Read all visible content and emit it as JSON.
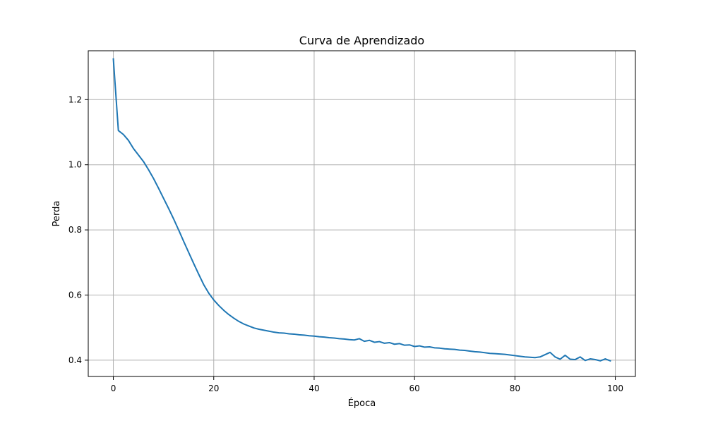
{
  "chart_data": {
    "type": "line",
    "title": "Curva de Aprendizado",
    "xlabel": "Época",
    "ylabel": "Perda",
    "xlim": [
      -5,
      104
    ],
    "ylim": [
      0.35,
      1.35
    ],
    "xticks": [
      "0",
      "20",
      "40",
      "60",
      "80",
      "100"
    ],
    "yticks": [
      "0.4",
      "0.6",
      "0.8",
      "1.0",
      "1.2"
    ],
    "grid": true,
    "colors": {
      "line": "#1f77b4",
      "grid": "#b0b0b0",
      "axes": "#000000"
    },
    "series": [
      {
        "values": [
          1.325,
          1.105,
          1.093,
          1.075,
          1.05,
          1.03,
          1.01,
          0.985,
          0.958,
          0.928,
          0.897,
          0.866,
          0.834,
          0.8,
          0.765,
          0.731,
          0.697,
          0.664,
          0.632,
          0.606,
          0.585,
          0.568,
          0.553,
          0.54,
          0.529,
          0.519,
          0.511,
          0.505,
          0.499,
          0.495,
          0.492,
          0.489,
          0.486,
          0.484,
          0.483,
          0.481,
          0.48,
          0.478,
          0.477,
          0.475,
          0.474,
          0.472,
          0.471,
          0.469,
          0.468,
          0.466,
          0.465,
          0.463,
          0.462,
          0.466,
          0.458,
          0.461,
          0.455,
          0.457,
          0.452,
          0.454,
          0.449,
          0.451,
          0.446,
          0.447,
          0.442,
          0.444,
          0.44,
          0.441,
          0.438,
          0.437,
          0.435,
          0.434,
          0.433,
          0.431,
          0.43,
          0.428,
          0.426,
          0.425,
          0.423,
          0.421,
          0.42,
          0.419,
          0.418,
          0.416,
          0.414,
          0.412,
          0.41,
          0.409,
          0.408,
          0.41,
          0.417,
          0.424,
          0.41,
          0.403,
          0.415,
          0.403,
          0.402,
          0.41,
          0.399,
          0.404,
          0.402,
          0.398,
          0.404,
          0.398
        ]
      }
    ]
  }
}
